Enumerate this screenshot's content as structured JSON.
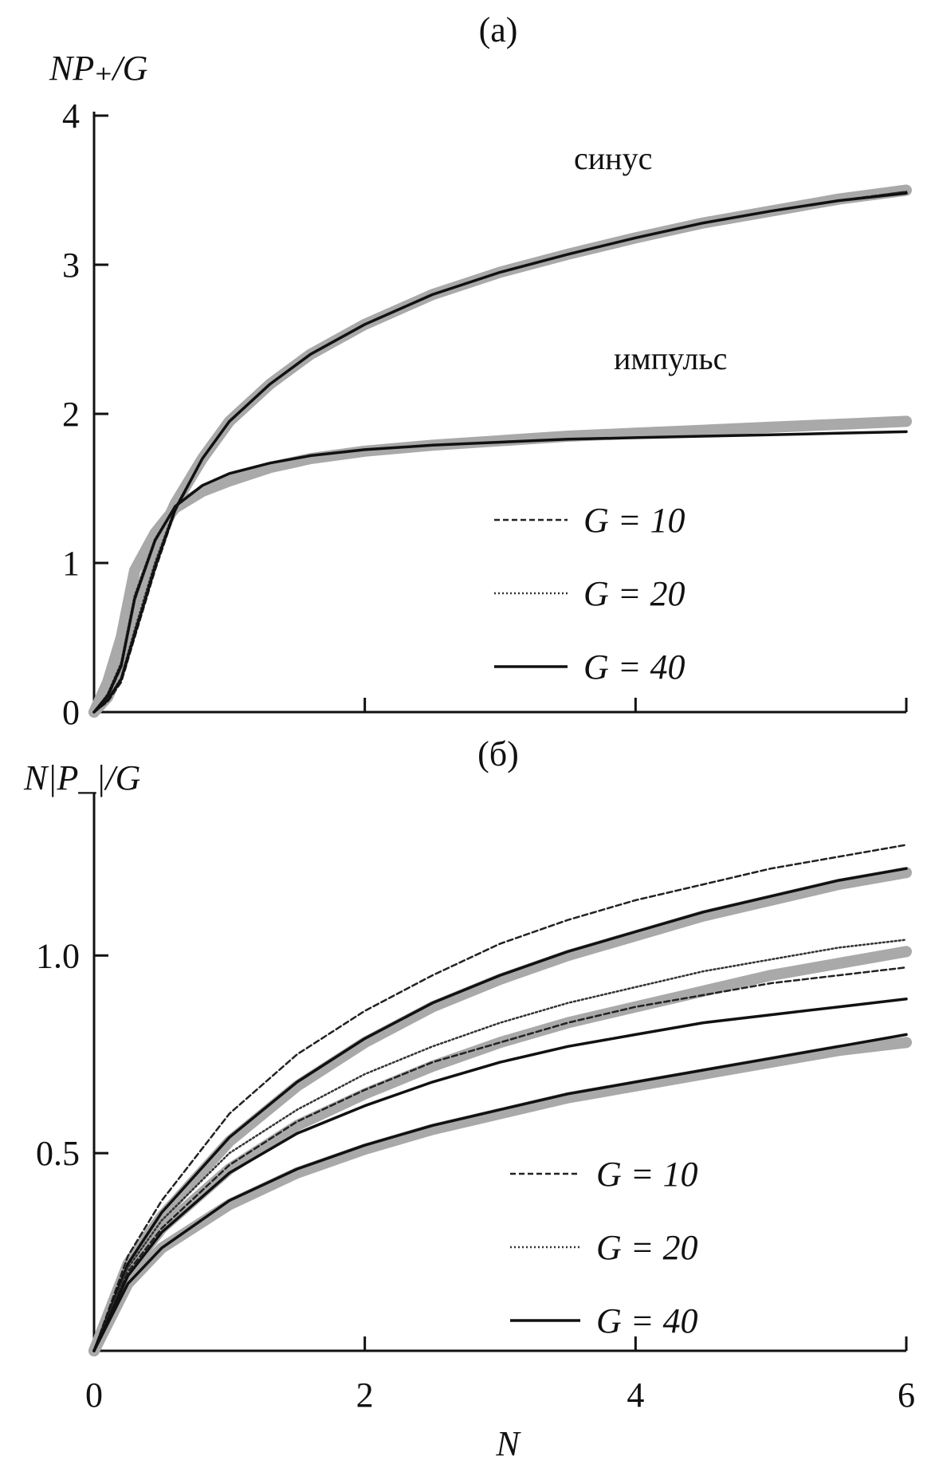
{
  "chart_data": [
    {
      "type": "line",
      "title": "(а)",
      "xlabel": "",
      "ylabel": "NP₊/G",
      "xlim": [
        0,
        6
      ],
      "ylim": [
        0,
        4
      ],
      "x_ticks": [
        0,
        2,
        4,
        6
      ],
      "y_ticks": [
        0,
        1,
        2,
        3,
        4
      ],
      "x_tick_labels": [
        "",
        "",
        "",
        ""
      ],
      "y_tick_labels": [
        "0",
        "1",
        "2",
        "3",
        "4"
      ],
      "grid": false,
      "legend_position": "lower-right",
      "legend": [
        {
          "label": "G = 10",
          "style": "dashed"
        },
        {
          "label": "G = 20",
          "style": "dotted"
        },
        {
          "label": "G = 40",
          "style": "solid"
        }
      ],
      "annotations": [
        "синус",
        "импульс"
      ],
      "series": [
        {
          "group": "синус",
          "style": "gray-band",
          "x": [
            0,
            0.1,
            0.2,
            0.3,
            0.45,
            0.6,
            0.8,
            1.0,
            1.3,
            1.6,
            2.0,
            2.5,
            3.0,
            3.5,
            4.0,
            4.5,
            5.0,
            5.5,
            6.0
          ],
          "y": [
            0,
            0.1,
            0.3,
            0.7,
            1.1,
            1.4,
            1.7,
            1.95,
            2.2,
            2.4,
            2.6,
            2.8,
            2.95,
            3.07,
            3.18,
            3.28,
            3.36,
            3.44,
            3.5
          ]
        },
        {
          "group": "синус",
          "style": "dashed",
          "x": [
            0,
            0.1,
            0.2,
            0.3,
            0.45,
            0.6,
            0.8,
            1.0,
            1.3,
            1.6,
            2.0,
            2.5,
            3.0,
            3.5,
            4.0,
            4.5,
            5.0,
            5.5,
            6.0
          ],
          "y": [
            0,
            0.07,
            0.2,
            0.5,
            0.95,
            1.35,
            1.7,
            1.95,
            2.2,
            2.4,
            2.6,
            2.8,
            2.95,
            3.07,
            3.18,
            3.28,
            3.36,
            3.43,
            3.49
          ]
        },
        {
          "group": "синус",
          "style": "dotted",
          "x": [
            0,
            0.1,
            0.2,
            0.3,
            0.45,
            0.6,
            0.8,
            1.0,
            1.3,
            1.6,
            2.0,
            2.5,
            3.0,
            3.5,
            4.0,
            4.5,
            5.0,
            5.5,
            6.0
          ],
          "y": [
            0,
            0.08,
            0.23,
            0.55,
            1.0,
            1.37,
            1.7,
            1.95,
            2.2,
            2.4,
            2.6,
            2.8,
            2.95,
            3.07,
            3.18,
            3.28,
            3.36,
            3.43,
            3.49
          ]
        },
        {
          "group": "синус",
          "style": "solid",
          "x": [
            0,
            0.1,
            0.2,
            0.3,
            0.45,
            0.6,
            0.8,
            1.0,
            1.3,
            1.6,
            2.0,
            2.5,
            3.0,
            3.5,
            4.0,
            4.5,
            5.0,
            5.5,
            6.0
          ],
          "y": [
            0,
            0.08,
            0.22,
            0.52,
            0.97,
            1.36,
            1.7,
            1.95,
            2.2,
            2.4,
            2.6,
            2.8,
            2.95,
            3.07,
            3.18,
            3.28,
            3.36,
            3.43,
            3.48
          ]
        },
        {
          "group": "импульс",
          "style": "gray-band",
          "x": [
            0,
            0.1,
            0.2,
            0.3,
            0.45,
            0.6,
            0.8,
            1.0,
            1.3,
            1.6,
            2.0,
            2.5,
            3.0,
            3.5,
            4.0,
            4.5,
            5.0,
            5.5,
            6.0
          ],
          "y": [
            0,
            0.2,
            0.5,
            0.95,
            1.2,
            1.37,
            1.48,
            1.55,
            1.64,
            1.7,
            1.75,
            1.79,
            1.82,
            1.85,
            1.87,
            1.89,
            1.91,
            1.93,
            1.95
          ]
        },
        {
          "group": "импульс",
          "style": "dashed",
          "x": [
            0,
            0.1,
            0.2,
            0.3,
            0.45,
            0.6,
            0.8,
            1.0,
            1.3,
            1.6,
            2.0,
            2.5,
            3.0,
            3.5,
            4.0,
            4.5,
            5.0,
            5.5,
            6.0
          ],
          "y": [
            0,
            0.1,
            0.3,
            0.75,
            1.15,
            1.38,
            1.52,
            1.6,
            1.67,
            1.72,
            1.76,
            1.79,
            1.81,
            1.83,
            1.84,
            1.85,
            1.86,
            1.87,
            1.88
          ]
        },
        {
          "group": "импульс",
          "style": "dotted",
          "x": [
            0,
            0.1,
            0.2,
            0.3,
            0.45,
            0.6,
            0.8,
            1.0,
            1.3,
            1.6,
            2.0,
            2.5,
            3.0,
            3.5,
            4.0,
            4.5,
            5.0,
            5.5,
            6.0
          ],
          "y": [
            0,
            0.12,
            0.33,
            0.78,
            1.16,
            1.38,
            1.52,
            1.6,
            1.67,
            1.72,
            1.76,
            1.79,
            1.81,
            1.83,
            1.84,
            1.85,
            1.86,
            1.87,
            1.88
          ]
        },
        {
          "group": "импульс",
          "style": "solid",
          "x": [
            0,
            0.1,
            0.2,
            0.3,
            0.45,
            0.6,
            0.8,
            1.0,
            1.3,
            1.6,
            2.0,
            2.5,
            3.0,
            3.5,
            4.0,
            4.5,
            5.0,
            5.5,
            6.0
          ],
          "y": [
            0,
            0.11,
            0.31,
            0.76,
            1.15,
            1.38,
            1.52,
            1.6,
            1.67,
            1.72,
            1.76,
            1.79,
            1.81,
            1.83,
            1.84,
            1.85,
            1.86,
            1.87,
            1.88
          ]
        }
      ]
    },
    {
      "type": "line",
      "title": "(б)",
      "xlabel": "N",
      "ylabel": "N|P_|/G",
      "xlim": [
        0,
        6
      ],
      "ylim": [
        0,
        1.4
      ],
      "x_ticks": [
        0,
        2,
        4,
        6
      ],
      "y_ticks": [
        0.5,
        1.0
      ],
      "x_tick_labels": [
        "0",
        "2",
        "4",
        "6"
      ],
      "y_tick_labels": [
        "0.5",
        "1.0"
      ],
      "grid": false,
      "legend_position": "lower-right",
      "legend": [
        {
          "label": "G = 10",
          "style": "dashed"
        },
        {
          "label": "G = 20",
          "style": "dotted"
        },
        {
          "label": "G = 40",
          "style": "solid"
        }
      ],
      "series": [
        {
          "group": "top",
          "style": "gray-band",
          "x": [
            0,
            0.25,
            0.5,
            1.0,
            1.5,
            2.0,
            2.5,
            3.0,
            3.5,
            4.0,
            4.5,
            5.0,
            5.5,
            6.0
          ],
          "y": [
            0,
            0.22,
            0.34,
            0.53,
            0.67,
            0.78,
            0.87,
            0.94,
            1.0,
            1.05,
            1.1,
            1.14,
            1.18,
            1.21
          ]
        },
        {
          "group": "top",
          "style": "dashed",
          "x": [
            0,
            0.25,
            0.5,
            1.0,
            1.5,
            2.0,
            2.5,
            3.0,
            3.5,
            4.0,
            4.5,
            5.0,
            5.5,
            6.0
          ],
          "y": [
            0,
            0.24,
            0.38,
            0.6,
            0.75,
            0.86,
            0.95,
            1.03,
            1.09,
            1.14,
            1.18,
            1.22,
            1.25,
            1.28
          ]
        },
        {
          "group": "top",
          "style": "solid",
          "x": [
            0,
            0.25,
            0.5,
            1.0,
            1.5,
            2.0,
            2.5,
            3.0,
            3.5,
            4.0,
            4.5,
            5.0,
            5.5,
            6.0
          ],
          "y": [
            0,
            0.22,
            0.35,
            0.54,
            0.68,
            0.79,
            0.88,
            0.95,
            1.01,
            1.06,
            1.11,
            1.15,
            1.19,
            1.22
          ]
        },
        {
          "group": "middle",
          "style": "gray-band",
          "x": [
            0,
            0.25,
            0.5,
            1.0,
            1.5,
            2.0,
            2.5,
            3.0,
            3.5,
            4.0,
            4.5,
            5.0,
            5.5,
            6.0
          ],
          "y": [
            0,
            0.2,
            0.31,
            0.46,
            0.57,
            0.65,
            0.72,
            0.78,
            0.83,
            0.87,
            0.91,
            0.95,
            0.98,
            1.01
          ]
        },
        {
          "group": "middle",
          "style": "dotted",
          "x": [
            0,
            0.25,
            0.5,
            1.0,
            1.5,
            2.0,
            2.5,
            3.0,
            3.5,
            4.0,
            4.5,
            5.0,
            5.5,
            6.0
          ],
          "y": [
            0,
            0.21,
            0.33,
            0.5,
            0.61,
            0.7,
            0.77,
            0.83,
            0.88,
            0.92,
            0.96,
            0.99,
            1.02,
            1.04
          ]
        },
        {
          "group": "middle",
          "style": "dashed",
          "x": [
            0,
            0.25,
            0.5,
            1.0,
            1.5,
            2.0,
            2.5,
            3.0,
            3.5,
            4.0,
            4.5,
            5.0,
            5.5,
            6.0
          ],
          "y": [
            0,
            0.2,
            0.31,
            0.47,
            0.58,
            0.66,
            0.73,
            0.78,
            0.83,
            0.87,
            0.9,
            0.93,
            0.95,
            0.97
          ]
        },
        {
          "group": "middle",
          "style": "solid",
          "x": [
            0,
            0.25,
            0.5,
            1.0,
            1.5,
            2.0,
            2.5,
            3.0,
            3.5,
            4.0,
            4.5,
            5.0,
            5.5,
            6.0
          ],
          "y": [
            0,
            0.19,
            0.3,
            0.45,
            0.55,
            0.62,
            0.68,
            0.73,
            0.77,
            0.8,
            0.83,
            0.85,
            0.87,
            0.89
          ]
        },
        {
          "group": "bottom",
          "style": "gray-band",
          "x": [
            0,
            0.25,
            0.5,
            1.0,
            1.5,
            2.0,
            2.5,
            3.0,
            3.5,
            4.0,
            4.5,
            5.0,
            5.5,
            6.0
          ],
          "y": [
            0,
            0.17,
            0.26,
            0.37,
            0.45,
            0.51,
            0.56,
            0.6,
            0.64,
            0.67,
            0.7,
            0.73,
            0.76,
            0.78
          ]
        },
        {
          "group": "bottom",
          "style": "solid",
          "x": [
            0,
            0.25,
            0.5,
            1.0,
            1.5,
            2.0,
            2.5,
            3.0,
            3.5,
            4.0,
            4.5,
            5.0,
            5.5,
            6.0
          ],
          "y": [
            0,
            0.17,
            0.26,
            0.38,
            0.46,
            0.52,
            0.57,
            0.61,
            0.65,
            0.68,
            0.71,
            0.74,
            0.77,
            0.8
          ]
        }
      ]
    }
  ]
}
